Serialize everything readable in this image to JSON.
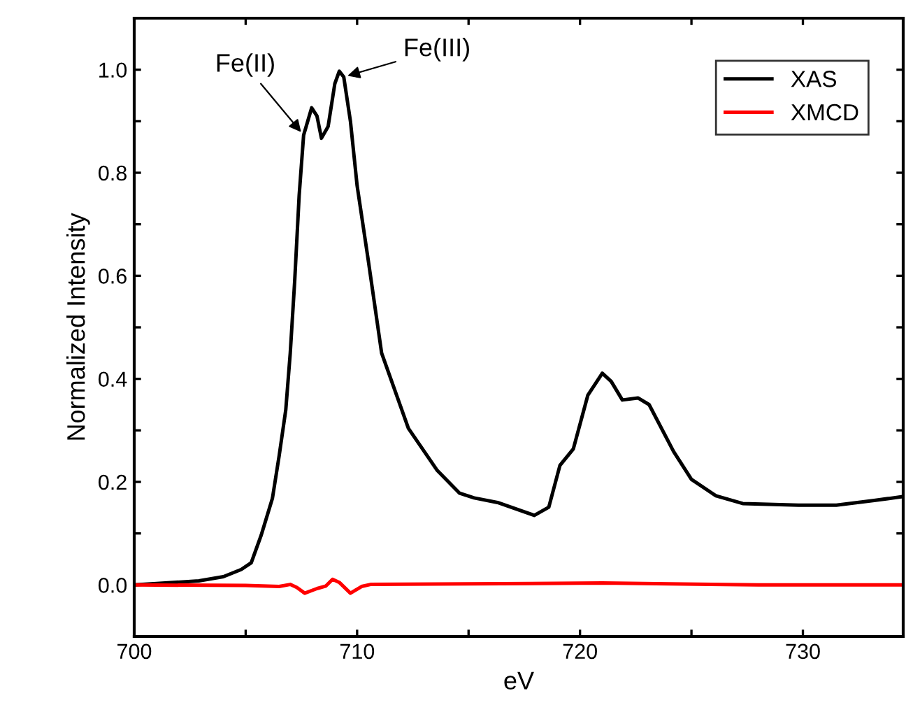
{
  "chart_data": {
    "type": "line",
    "xlabel": "eV",
    "ylabel": "Normalized Intensity",
    "xlim": [
      700,
      734.5
    ],
    "ylim": [
      -0.1,
      1.1
    ],
    "xticks": [
      700,
      {
        "value": 705,
        "label": null
      },
      710,
      {
        "value": 715,
        "label": null
      },
      720,
      {
        "value": 725,
        "label": null
      },
      730
    ],
    "yticks": [
      {
        "value": -0.1,
        "label": null
      },
      {
        "value": 0,
        "label": "0.0"
      },
      {
        "value": 0.1,
        "label": null
      },
      0.2,
      {
        "value": 0.3,
        "label": null
      },
      0.4,
      {
        "value": 0.5,
        "label": null
      },
      0.6,
      {
        "value": 0.7,
        "label": null
      },
      0.8,
      {
        "value": 0.9,
        "label": null
      },
      {
        "value": 1.0,
        "label": "1.0"
      }
    ],
    "grid": false,
    "legend": "top right",
    "line_style": "solid",
    "marker": "none",
    "annotations": [
      {
        "text": "Fe(II)",
        "x": 707.6,
        "y": 0.873
      },
      {
        "text": "Fe(III)",
        "x": 709.4,
        "y": 0.986
      }
    ],
    "series": [
      {
        "name": "XAS",
        "color": "#000000",
        "x": [
          700,
          702.9,
          704,
          704.8,
          705.25,
          705.7,
          706.2,
          706.5,
          706.8,
          707.0,
          707.2,
          707.4,
          707.6,
          707.96,
          708.2,
          708.4,
          708.7,
          709.0,
          709.2,
          709.4,
          709.7,
          710.0,
          710.5,
          711.1,
          712.3,
          713.6,
          714.6,
          715.25,
          716.3,
          717.95,
          718.6,
          719.1,
          719.7,
          720.35,
          721.0,
          721.4,
          721.9,
          722.6,
          723.1,
          724.2,
          725.0,
          726.1,
          727.3,
          729.8,
          731.5,
          733.2,
          734.4
        ],
        "values": [
          0.0,
          0.008,
          0.016,
          0.03,
          0.043,
          0.097,
          0.168,
          0.25,
          0.34,
          0.45,
          0.59,
          0.756,
          0.873,
          0.926,
          0.91,
          0.867,
          0.89,
          0.973,
          0.997,
          0.986,
          0.9,
          0.775,
          0.63,
          0.45,
          0.304,
          0.222,
          0.178,
          0.169,
          0.16,
          0.135,
          0.151,
          0.232,
          0.264,
          0.368,
          0.411,
          0.395,
          0.359,
          0.363,
          0.35,
          0.259,
          0.205,
          0.173,
          0.158,
          0.155,
          0.155,
          0.164,
          0.171
        ]
      },
      {
        "name": "XMCD",
        "color": "#ff0000",
        "x": [
          700,
          705,
          706.5,
          707.0,
          707.3,
          707.65,
          708.2,
          708.6,
          708.9,
          709.2,
          709.7,
          710.2,
          710.6,
          715,
          719,
          721,
          724,
          728,
          734.4
        ],
        "values": [
          0.0,
          -0.001,
          -0.003,
          0.001,
          -0.005,
          -0.016,
          -0.007,
          -0.002,
          0.011,
          0.005,
          -0.016,
          -0.003,
          0.001,
          0.002,
          0.003,
          0.004,
          0.002,
          0.0,
          0.0
        ]
      }
    ]
  }
}
